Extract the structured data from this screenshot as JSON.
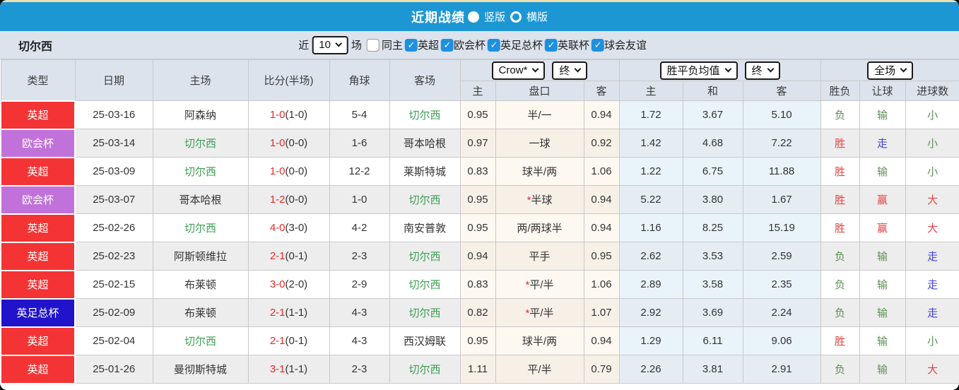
{
  "accent_color": "#1d97d4",
  "title_bar": {
    "title": "近期战绩",
    "options": [
      {
        "label": "竖版",
        "selected": true
      },
      {
        "label": "横版",
        "selected": false
      }
    ]
  },
  "filter_bar": {
    "team": "切尔西",
    "recent_label": "近",
    "recent_value": "10",
    "recent_suffix": "场",
    "checkboxes": [
      {
        "label": "同主",
        "checked": false
      },
      {
        "label": "英超",
        "checked": true
      },
      {
        "label": "欧会杯",
        "checked": true
      },
      {
        "label": "英足总杯",
        "checked": true
      },
      {
        "label": "英联杯",
        "checked": true
      },
      {
        "label": "球会友谊",
        "checked": true
      }
    ]
  },
  "table": {
    "team": "切尔西",
    "main_headers": [
      "类型",
      "日期",
      "主场",
      "比分(半场)",
      "角球",
      "客场"
    ],
    "sub_headers": [
      "主",
      "盘口",
      "客",
      "主",
      "和",
      "客",
      "胜负",
      "让球",
      "进球数"
    ],
    "selects": {
      "bookmaker": "Crow*",
      "odds_stage": "终",
      "avg_label": "胜平负均值",
      "avg_stage": "终",
      "scope": "全场"
    },
    "type_colors": {
      "英超": "#f43434",
      "欧会杯": "#c172da",
      "英足总杯": "#2013cb"
    },
    "result_colors": {
      "胜": "#e34444",
      "赢": "#e34444",
      "大": "#e34444",
      "负": "#5d9155",
      "输": "#5d9155",
      "小": "#5d9155",
      "走": "#4141dd"
    },
    "rows": [
      {
        "type": "英超",
        "date": "25-03-16",
        "home": "阿森纳",
        "score_ft": "1-0",
        "score_ht": "1-0",
        "corner": "5-4",
        "away": "切尔西",
        "odds_home": "0.95",
        "handicap": "半/一",
        "handicap_star": false,
        "odds_away": "0.94",
        "avg_home": "1.72",
        "avg_draw": "3.67",
        "avg_away": "5.10",
        "res_wdl": "负",
        "res_let": "输",
        "res_goal": "小"
      },
      {
        "type": "欧会杯",
        "date": "25-03-14",
        "home": "切尔西",
        "score_ft": "1-0",
        "score_ht": "0-0",
        "corner": "1-6",
        "away": "哥本哈根",
        "odds_home": "0.97",
        "handicap": "一球",
        "handicap_star": false,
        "odds_away": "0.92",
        "avg_home": "1.42",
        "avg_draw": "4.68",
        "avg_away": "7.22",
        "res_wdl": "胜",
        "res_let": "走",
        "res_goal": "小"
      },
      {
        "type": "英超",
        "date": "25-03-09",
        "home": "切尔西",
        "score_ft": "1-0",
        "score_ht": "0-0",
        "corner": "12-2",
        "away": "莱斯特城",
        "odds_home": "0.83",
        "handicap": "球半/两",
        "handicap_star": false,
        "odds_away": "1.06",
        "avg_home": "1.22",
        "avg_draw": "6.75",
        "avg_away": "11.88",
        "res_wdl": "胜",
        "res_let": "输",
        "res_goal": "小"
      },
      {
        "type": "欧会杯",
        "date": "25-03-07",
        "home": "哥本哈根",
        "score_ft": "1-2",
        "score_ht": "0-0",
        "corner": "1-0",
        "away": "切尔西",
        "odds_home": "0.95",
        "handicap": "半球",
        "handicap_star": true,
        "odds_away": "0.94",
        "avg_home": "5.22",
        "avg_draw": "3.80",
        "avg_away": "1.67",
        "res_wdl": "胜",
        "res_let": "赢",
        "res_goal": "大"
      },
      {
        "type": "英超",
        "date": "25-02-26",
        "home": "切尔西",
        "score_ft": "4-0",
        "score_ht": "3-0",
        "corner": "4-2",
        "away": "南安普敦",
        "odds_home": "0.95",
        "handicap": "两/两球半",
        "handicap_star": false,
        "odds_away": "0.94",
        "avg_home": "1.16",
        "avg_draw": "8.25",
        "avg_away": "15.19",
        "res_wdl": "胜",
        "res_let": "赢",
        "res_goal": "大"
      },
      {
        "type": "英超",
        "date": "25-02-23",
        "home": "阿斯顿维拉",
        "score_ft": "2-1",
        "score_ht": "0-1",
        "corner": "2-3",
        "away": "切尔西",
        "odds_home": "0.94",
        "handicap": "平手",
        "handicap_star": false,
        "odds_away": "0.95",
        "avg_home": "2.62",
        "avg_draw": "3.53",
        "avg_away": "2.59",
        "res_wdl": "负",
        "res_let": "输",
        "res_goal": "走"
      },
      {
        "type": "英超",
        "date": "25-02-15",
        "home": "布莱顿",
        "score_ft": "3-0",
        "score_ht": "2-0",
        "corner": "2-9",
        "away": "切尔西",
        "odds_home": "0.83",
        "handicap": "平/半",
        "handicap_star": true,
        "odds_away": "1.06",
        "avg_home": "2.89",
        "avg_draw": "3.58",
        "avg_away": "2.35",
        "res_wdl": "负",
        "res_let": "输",
        "res_goal": "走"
      },
      {
        "type": "英足总杯",
        "date": "25-02-09",
        "home": "布莱顿",
        "score_ft": "2-1",
        "score_ht": "1-1",
        "corner": "4-3",
        "away": "切尔西",
        "odds_home": "0.82",
        "handicap": "平/半",
        "handicap_star": true,
        "odds_away": "1.07",
        "avg_home": "2.92",
        "avg_draw": "3.69",
        "avg_away": "2.24",
        "res_wdl": "负",
        "res_let": "输",
        "res_goal": "走"
      },
      {
        "type": "英超",
        "date": "25-02-04",
        "home": "切尔西",
        "score_ft": "2-1",
        "score_ht": "0-1",
        "corner": "4-3",
        "away": "西汉姆联",
        "odds_home": "0.95",
        "handicap": "球半/两",
        "handicap_star": false,
        "odds_away": "0.94",
        "avg_home": "1.29",
        "avg_draw": "6.11",
        "avg_away": "9.06",
        "res_wdl": "胜",
        "res_let": "输",
        "res_goal": "小"
      },
      {
        "type": "英超",
        "date": "25-01-26",
        "home": "曼彻斯特城",
        "score_ft": "3-1",
        "score_ht": "1-1",
        "corner": "2-3",
        "away": "切尔西",
        "odds_home": "1.11",
        "handicap": "平/半",
        "handicap_star": false,
        "odds_away": "0.79",
        "avg_home": "2.26",
        "avg_draw": "3.81",
        "avg_away": "2.91",
        "res_wdl": "负",
        "res_let": "输",
        "res_goal": "大"
      }
    ]
  }
}
